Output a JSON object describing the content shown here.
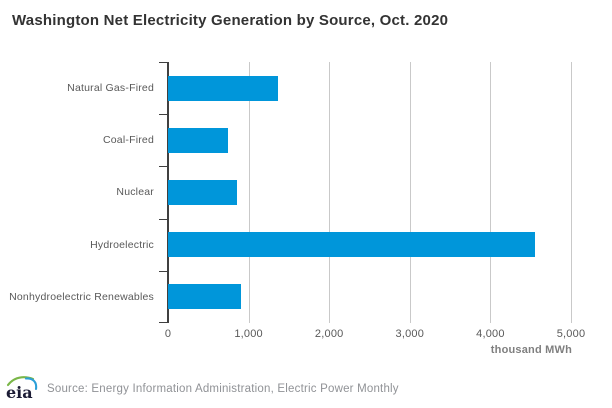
{
  "chart": {
    "title": "Washington Net Electricity Generation by Source, Oct. 2020"
  },
  "chart_data": {
    "type": "bar",
    "orientation": "horizontal",
    "title": "Washington Net Electricity Generation by Source, Oct. 2020",
    "categories": [
      "Natural Gas-Fired",
      "Coal-Fired",
      "Nuclear",
      "Hydroelectric",
      "Nonhydroelectric Renewables"
    ],
    "values": [
      1370,
      740,
      860,
      4550,
      900
    ],
    "xlabel": "thousand MWh",
    "ylabel": "",
    "xlim": [
      0,
      5000
    ],
    "xticks": [
      0,
      1000,
      2000,
      3000,
      4000,
      5000
    ],
    "xtick_labels": [
      "0",
      "1,000",
      "2,000",
      "3,000",
      "4,000",
      "5,000"
    ],
    "grid": true,
    "legend": false,
    "bar_color": "#0096da"
  },
  "colors": {
    "bar": "#0096da",
    "axis": "#404040",
    "gridline": "#c9c9c9",
    "title_text": "#333333",
    "label_text": "#595959",
    "unit_text": "#7f7f7f",
    "source_text": "#909296",
    "logo_text": "#1c1c35",
    "logo_green": "#7ab648",
    "logo_blue": "#2b9fd8"
  },
  "footer": {
    "logo_name": "eia-logo",
    "source": "Source: Energy Information Administration, Electric Power Monthly"
  }
}
